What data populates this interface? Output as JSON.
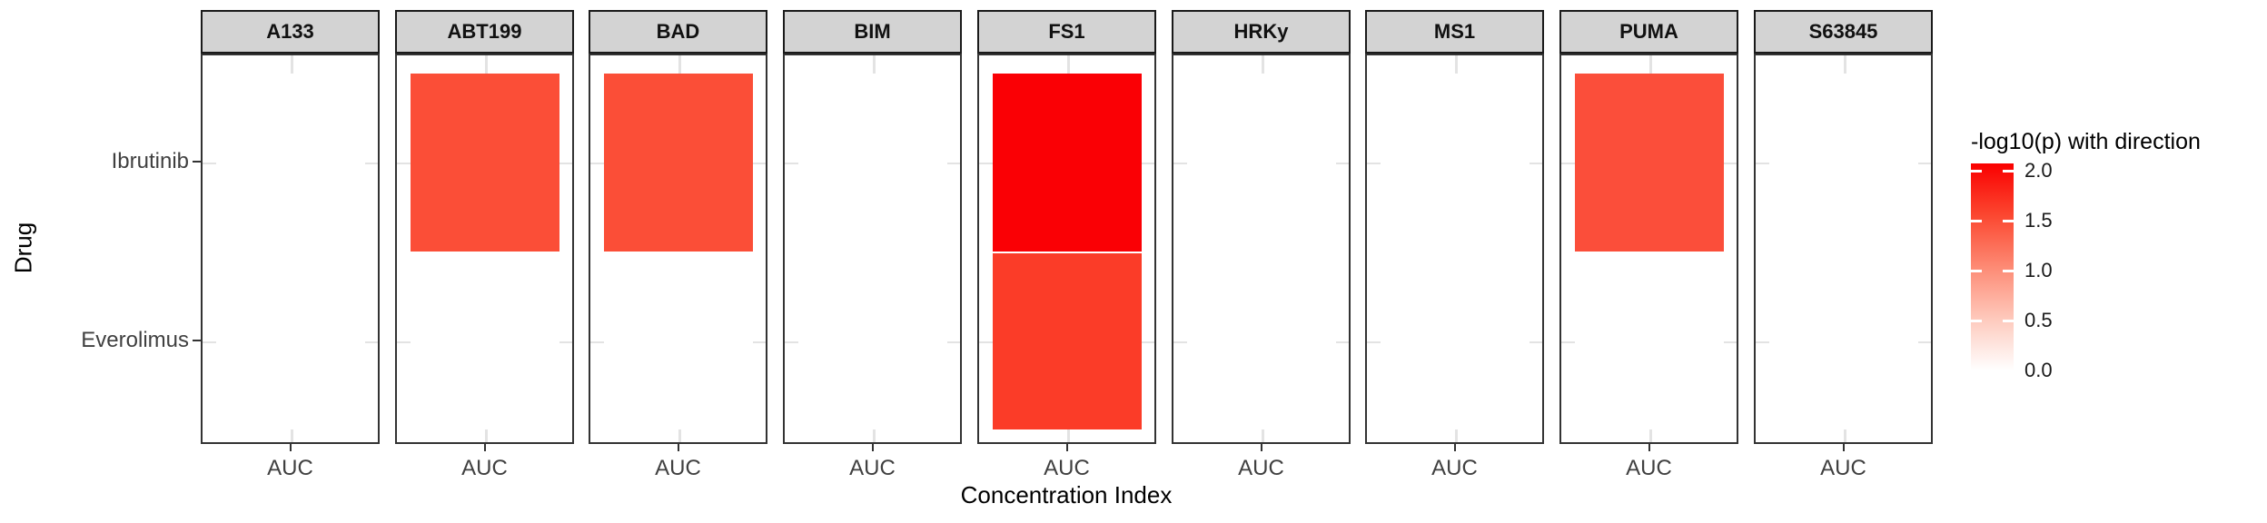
{
  "chart_data": {
    "type": "heatmap",
    "title": "",
    "facets": [
      "A133",
      "ABT199",
      "BAD",
      "BIM",
      "FS1",
      "HRKy",
      "MS1",
      "PUMA",
      "S63845"
    ],
    "x": {
      "label": "Concentration Index",
      "categories": [
        "AUC"
      ]
    },
    "y": {
      "label": "Drug",
      "categories": [
        "Ibrutinib",
        "Everolimus"
      ]
    },
    "legend": {
      "title": "-log10(p) with direction",
      "tick_labels": [
        "2.0",
        "1.5",
        "1.0",
        "0.5",
        "0.0"
      ],
      "tick_values": [
        2.0,
        1.5,
        1.0,
        0.5,
        0.0
      ],
      "range": [
        0.0,
        2.07
      ],
      "low_color": "#FFFFFF",
      "high_color": "#FA0000",
      "position": "right"
    },
    "grid": "major gridlines visible as stubs at panel edges (hidden under tiles)",
    "tiles": [
      {
        "facet": "A133",
        "drug": "Ibrutinib",
        "value": 0.0,
        "color": "#FFFFFF"
      },
      {
        "facet": "A133",
        "drug": "Everolimus",
        "value": 0.0,
        "color": "#FFFFFF"
      },
      {
        "facet": "ABT199",
        "drug": "Ibrutinib",
        "value": 1.5,
        "color": "#FB4E37"
      },
      {
        "facet": "ABT199",
        "drug": "Everolimus",
        "value": 0.0,
        "color": "#FFFFFF"
      },
      {
        "facet": "BAD",
        "drug": "Ibrutinib",
        "value": 1.5,
        "color": "#FB4E37"
      },
      {
        "facet": "BAD",
        "drug": "Everolimus",
        "value": 0.0,
        "color": "#FFFFFF"
      },
      {
        "facet": "BIM",
        "drug": "Ibrutinib",
        "value": 0.0,
        "color": "#FFFFFF"
      },
      {
        "facet": "BIM",
        "drug": "Everolimus",
        "value": 0.0,
        "color": "#FFFFFF"
      },
      {
        "facet": "FS1",
        "drug": "Ibrutinib",
        "value": 2.05,
        "color": "#FA0005"
      },
      {
        "facet": "FS1",
        "drug": "Everolimus",
        "value": 1.7,
        "color": "#FB3C28"
      },
      {
        "facet": "HRKy",
        "drug": "Ibrutinib",
        "value": 0.0,
        "color": "#FFFFFF"
      },
      {
        "facet": "HRKy",
        "drug": "Everolimus",
        "value": 0.0,
        "color": "#FFFFFF"
      },
      {
        "facet": "MS1",
        "drug": "Ibrutinib",
        "value": 0.0,
        "color": "#FFFFFF"
      },
      {
        "facet": "MS1",
        "drug": "Everolimus",
        "value": 0.0,
        "color": "#FFFFFF"
      },
      {
        "facet": "PUMA",
        "drug": "Ibrutinib",
        "value": 1.5,
        "color": "#FB4E3A"
      },
      {
        "facet": "PUMA",
        "drug": "Everolimus",
        "value": 0.0,
        "color": "#FFFFFF"
      },
      {
        "facet": "S63845",
        "drug": "Ibrutinib",
        "value": 0.0,
        "color": "#FFFFFF"
      },
      {
        "facet": "S63845",
        "drug": "Everolimus",
        "value": 0.0,
        "color": "#FFFFFF"
      }
    ]
  },
  "style": {
    "strip_fill": "#D3D3D3",
    "strip_border": "#1A1A1A",
    "panel_border": "#333333",
    "gridline_color": "#E3E3E3",
    "axis_tick_color": "#333333",
    "tick_label_color": "#404040",
    "colorbar_stops_top_to_bottom": [
      "#FA0000",
      "#FB4730",
      "#FD8A74",
      "#FEC9BC",
      "#FFFFFF"
    ]
  }
}
